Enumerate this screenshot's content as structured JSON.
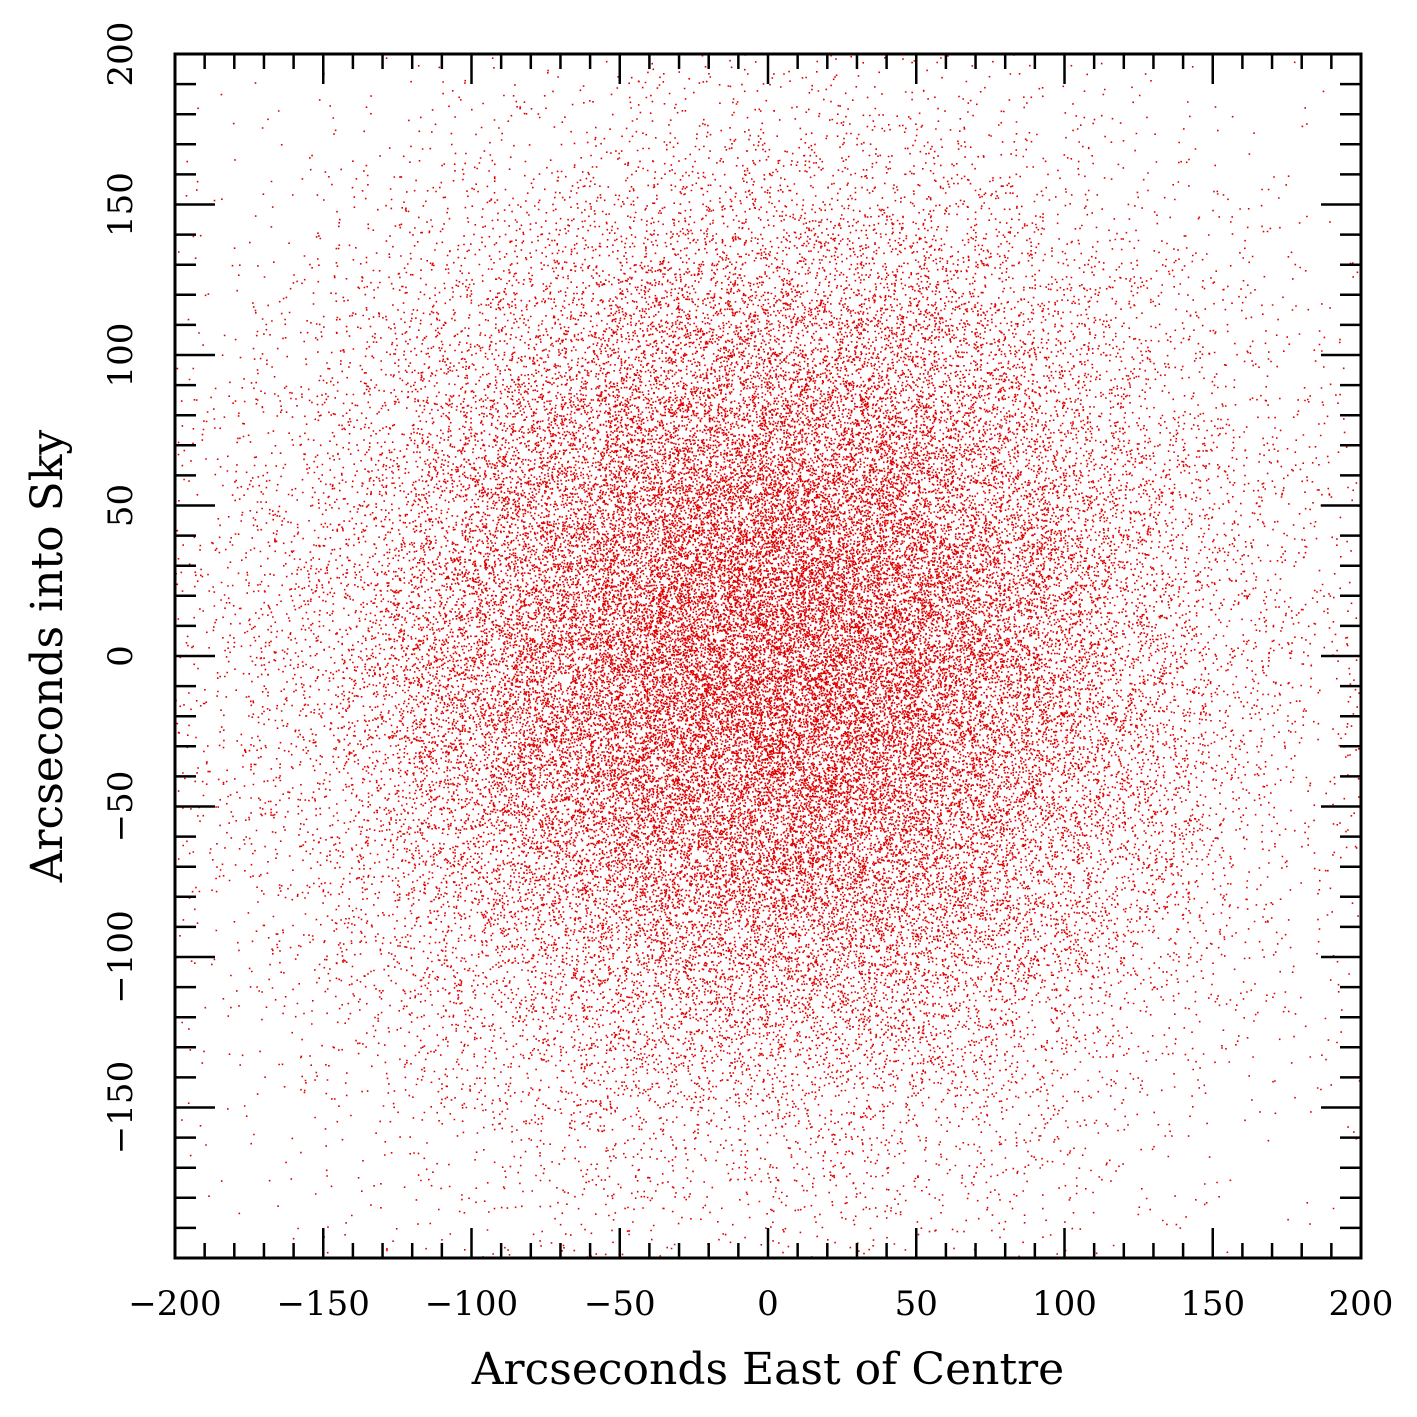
{
  "chart_data": {
    "type": "scatter",
    "title": "",
    "xlabel": "Arcseconds East of Centre",
    "ylabel": "Arcseconds into Sky",
    "xlim": [
      -200,
      200
    ],
    "ylim": [
      -200,
      200
    ],
    "x_ticks": [
      -200,
      -150,
      -100,
      -50,
      0,
      50,
      100,
      150,
      200
    ],
    "y_ticks": [
      -150,
      -100,
      -50,
      0,
      50,
      100,
      150,
      200
    ],
    "x_tick_labels": [
      "−200",
      "−150",
      "−100",
      "−50",
      "0",
      "50",
      "100",
      "150",
      "200"
    ],
    "y_tick_labels": [
      "−150",
      "−100",
      "−50",
      "0",
      "50",
      "100",
      "150",
      "200"
    ],
    "minor_tick_step": 10,
    "grid": false,
    "legend": "none",
    "point_color": "#e00000",
    "distribution": {
      "shape": "centrally concentrated cloud, densest at the origin",
      "center": [
        0,
        0
      ],
      "sigma": 75,
      "approx_points": 60000
    }
  }
}
